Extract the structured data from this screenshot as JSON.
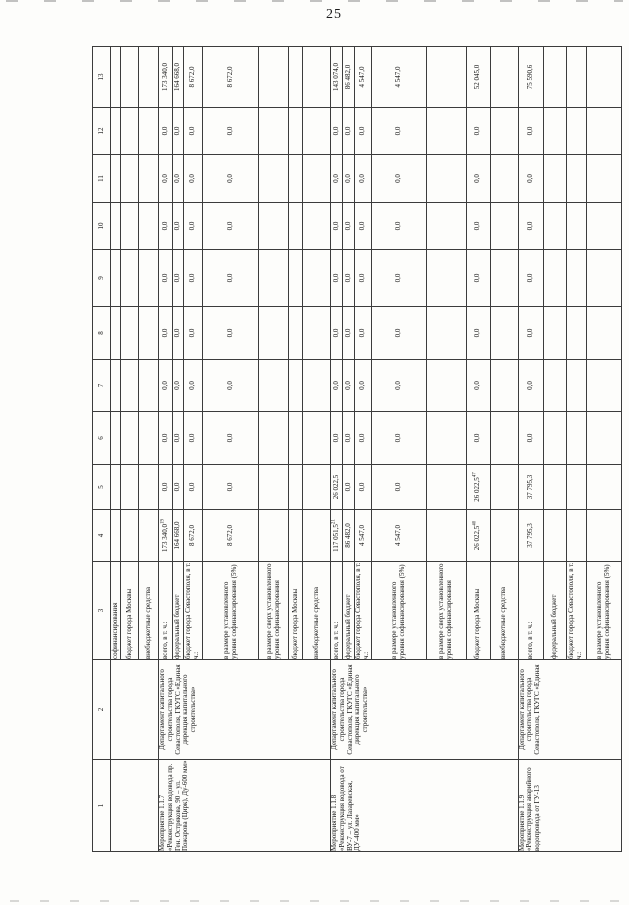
{
  "page": {
    "number": "25"
  },
  "table": {
    "column_numbers": [
      "1",
      "2",
      "3",
      "4",
      "5",
      "6",
      "7",
      "8",
      "9",
      "10",
      "11",
      "12",
      "13"
    ],
    "sections": [
      {
        "measure": "",
        "department": "",
        "rows": [
          {
            "label": "софинансирования",
            "values": [
              "",
              "",
              "",
              "",
              "",
              "",
              "",
              "",
              "",
              ""
            ]
          },
          {
            "label": "бюджет города Москвы",
            "values": [
              "",
              "",
              "",
              "",
              "",
              "",
              "",
              "",
              "",
              ""
            ]
          },
          {
            "label": "внебюджетные средства",
            "values": [
              "",
              "",
              "",
              "",
              "",
              "",
              "",
              "",
              "",
              ""
            ]
          }
        ]
      },
      {
        "measure": "Мероприятие 1.1.7 «Реконструкция водовода пр. Ген. Острякова, 90 – ул. Пожарова (Цирк), Ду-600 мм»",
        "department": "Департамент капитального строительства города Севастополя, ГКУГС «Единая дирекция капитального строительства»",
        "rows": [
          {
            "label": "всего, в т. ч.:",
            "values": [
              "173 340,0",
              "0,0",
              "0,0",
              "0,0",
              "0,0",
              "0,0",
              "0,0",
              "0,0",
              "0,0",
              "173 340,0"
            ],
            "sups": {
              "0": "19"
            }
          },
          {
            "label": "федеральный бюджет",
            "values": [
              "164 668,0",
              "0,0",
              "0,0",
              "0,0",
              "0,0",
              "0,0",
              "0,0",
              "0,0",
              "0,0",
              "164 668,0"
            ]
          },
          {
            "label": "бюджет города Севастополя, в т. ч.:",
            "values": [
              "8 672,0",
              "0,0",
              "0,0",
              "0,0",
              "0,0",
              "0,0",
              "0,0",
              "0,0",
              "0,0",
              "8 672,0"
            ]
          },
          {
            "label": "в размере установленного уровня софинансирования (5%)",
            "values": [
              "8 672,0",
              "0,0",
              "0,0",
              "0,0",
              "0,0",
              "0,0",
              "0,0",
              "0,0",
              "0,0",
              "8 672,0"
            ]
          },
          {
            "label": "в размере сверх установленного уровня софинансирования",
            "values": [
              "",
              "",
              "",
              "",
              "",
              "",
              "",
              "",
              "",
              ""
            ]
          },
          {
            "label": "бюджет города Москвы",
            "values": [
              "",
              "",
              "",
              "",
              "",
              "",
              "",
              "",
              "",
              ""
            ]
          },
          {
            "label": "внебюджетные средства",
            "values": [
              "",
              "",
              "",
              "",
              "",
              "",
              "",
              "",
              "",
              ""
            ]
          }
        ]
      },
      {
        "measure": "Мероприятие 1.1.8 «Реконструкция водовода от ВУ-7 – ул. Лазаревская, ДУ-400 мм»",
        "department": "Департамент капитального строительства города Севастополя, ГКУГС «Единая дирекция капитального строительства»",
        "rows": [
          {
            "label": "всего, в т. ч.:",
            "values": [
              "117 051,5",
              "26 022,5",
              "0,0",
              "0,0",
              "0,0",
              "0,0",
              "0,0",
              "0,0",
              "0,0",
              "143 074,0"
            ],
            "sups": {
              "0": "21"
            }
          },
          {
            "label": "федеральный бюджет",
            "values": [
              "86 482,0",
              "0,0",
              "0,0",
              "0,0",
              "0,0",
              "0,0",
              "0,0",
              "0,0",
              "0,0",
              "86 482,0"
            ]
          },
          {
            "label": "бюджет города Севастополя, в т. ч.:",
            "values": [
              "4 547,0",
              "0,0",
              "0,0",
              "0,0",
              "0,0",
              "0,0",
              "0,0",
              "0,0",
              "0,0",
              "4 547,0"
            ]
          },
          {
            "label": "в размере установленного уровня софинансирования (5%)",
            "values": [
              "4 547,0",
              "0,0",
              "0,0",
              "0,0",
              "0,0",
              "0,0",
              "0,0",
              "0,0",
              "0,0",
              "4 547,0"
            ]
          },
          {
            "label": "в размере сверх установленного уровня софинансирования",
            "values": [
              "",
              "",
              "",
              "",
              "",
              "",
              "",
              "",
              "",
              ""
            ]
          },
          {
            "label": "бюджет города Москвы",
            "values": [
              "26 022,5",
              "26 022,5",
              "0,0",
              "0,0",
              "0,0",
              "0,0",
              "0,0",
              "0,0",
              "0,0",
              "52 045,0"
            ],
            "sups": {
              "0": "40",
              "1": "47"
            }
          },
          {
            "label": "внебюджетные средства",
            "values": [
              "",
              "",
              "",
              "",
              "",
              "",
              "",
              "",
              "",
              ""
            ]
          }
        ]
      },
      {
        "measure": "Мероприятие 1.1.9 «Реконструкция аварийного водопровода от ГУ-13",
        "department": "Департамент капитального строительства города Севастополя, ГКУГС «Единая",
        "rows": [
          {
            "label": "всего, в т. ч.:",
            "values": [
              "37 795,3",
              "37 795,3",
              "0,0",
              "0,0",
              "0,0",
              "0,0",
              "0,0",
              "0,0",
              "0,0",
              "75 590,6"
            ]
          },
          {
            "label": "федеральный бюджет",
            "values": [
              "",
              "",
              "",
              "",
              "",
              "",
              "",
              "",
              "",
              ""
            ]
          },
          {
            "label": "бюджет города Севастополя, в т. ч.:",
            "values": [
              "",
              "",
              "",
              "",
              "",
              "",
              "",
              "",
              "",
              ""
            ]
          },
          {
            "label": "в размере установленного уровня софинансирования (5%)",
            "values": [
              "",
              "",
              "",
              "",
              "",
              "",
              "",
              "",
              "",
              ""
            ]
          }
        ]
      }
    ]
  }
}
